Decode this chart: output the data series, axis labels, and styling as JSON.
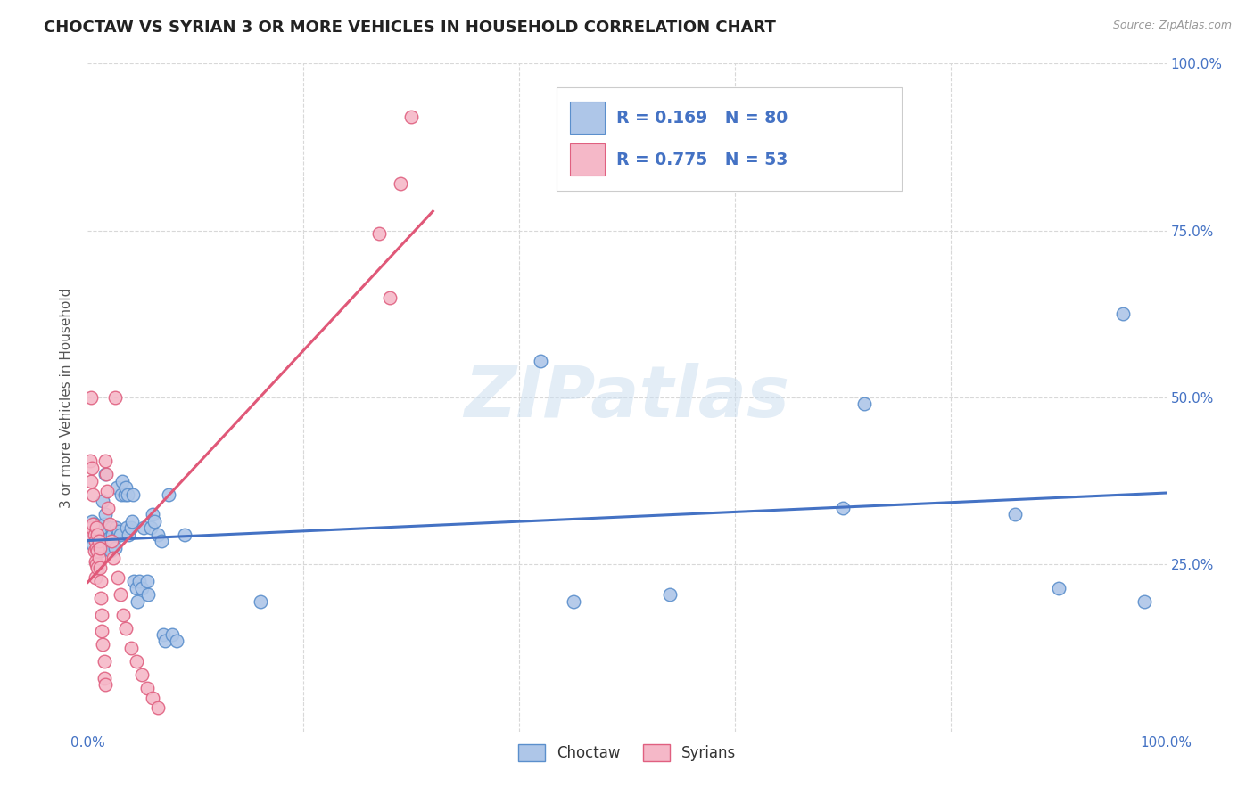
{
  "title": "CHOCTAW VS SYRIAN 3 OR MORE VEHICLES IN HOUSEHOLD CORRELATION CHART",
  "source": "Source: ZipAtlas.com",
  "ylabel": "3 or more Vehicles in Household",
  "xlim": [
    0,
    1.0
  ],
  "ylim": [
    0,
    1.0
  ],
  "ytick_positions": [
    0.25,
    0.5,
    0.75,
    1.0
  ],
  "ytick_labels": [
    "25.0%",
    "50.0%",
    "75.0%",
    "100.0%"
  ],
  "background_color": "#ffffff",
  "grid_color": "#d8d8d8",
  "choctaw_color": "#aec6e8",
  "choctaw_edge_color": "#5b8fcc",
  "choctaw_line_color": "#4472c4",
  "syrian_color": "#f5b8c8",
  "syrian_edge_color": "#e06080",
  "syrian_line_color": "#e05878",
  "choctaw_R": 0.169,
  "choctaw_N": 80,
  "syrian_R": 0.775,
  "syrian_N": 53,
  "legend_label_choctaw": "Choctaw",
  "legend_label_syrian": "Syrians",
  "watermark": "ZIPatlas",
  "title_fontsize": 13,
  "axis_label_fontsize": 11,
  "tick_fontsize": 11,
  "choctaw_points": [
    [
      0.003,
      0.305
    ],
    [
      0.004,
      0.295
    ],
    [
      0.004,
      0.315
    ],
    [
      0.005,
      0.28
    ],
    [
      0.005,
      0.3
    ],
    [
      0.006,
      0.29
    ],
    [
      0.006,
      0.31
    ],
    [
      0.007,
      0.295
    ],
    [
      0.007,
      0.285
    ],
    [
      0.008,
      0.3
    ],
    [
      0.008,
      0.27
    ],
    [
      0.009,
      0.305
    ],
    [
      0.009,
      0.28
    ],
    [
      0.01,
      0.295
    ],
    [
      0.01,
      0.285
    ],
    [
      0.011,
      0.3
    ],
    [
      0.011,
      0.275
    ],
    [
      0.012,
      0.29
    ],
    [
      0.012,
      0.27
    ],
    [
      0.013,
      0.3
    ],
    [
      0.013,
      0.285
    ],
    [
      0.014,
      0.345
    ],
    [
      0.014,
      0.295
    ],
    [
      0.015,
      0.31
    ],
    [
      0.015,
      0.28
    ],
    [
      0.016,
      0.385
    ],
    [
      0.016,
      0.325
    ],
    [
      0.017,
      0.295
    ],
    [
      0.018,
      0.305
    ],
    [
      0.019,
      0.28
    ],
    [
      0.02,
      0.29
    ],
    [
      0.021,
      0.27
    ],
    [
      0.022,
      0.305
    ],
    [
      0.023,
      0.295
    ],
    [
      0.024,
      0.285
    ],
    [
      0.025,
      0.275
    ],
    [
      0.026,
      0.305
    ],
    [
      0.027,
      0.365
    ],
    [
      0.028,
      0.295
    ],
    [
      0.029,
      0.3
    ],
    [
      0.03,
      0.295
    ],
    [
      0.031,
      0.355
    ],
    [
      0.032,
      0.375
    ],
    [
      0.034,
      0.355
    ],
    [
      0.035,
      0.365
    ],
    [
      0.036,
      0.305
    ],
    [
      0.037,
      0.355
    ],
    [
      0.038,
      0.295
    ],
    [
      0.04,
      0.305
    ],
    [
      0.041,
      0.315
    ],
    [
      0.042,
      0.355
    ],
    [
      0.043,
      0.225
    ],
    [
      0.045,
      0.215
    ],
    [
      0.046,
      0.195
    ],
    [
      0.048,
      0.225
    ],
    [
      0.05,
      0.215
    ],
    [
      0.052,
      0.305
    ],
    [
      0.055,
      0.225
    ],
    [
      0.056,
      0.205
    ],
    [
      0.058,
      0.305
    ],
    [
      0.06,
      0.325
    ],
    [
      0.062,
      0.315
    ],
    [
      0.065,
      0.295
    ],
    [
      0.068,
      0.285
    ],
    [
      0.07,
      0.145
    ],
    [
      0.072,
      0.135
    ],
    [
      0.075,
      0.355
    ],
    [
      0.078,
      0.145
    ],
    [
      0.082,
      0.135
    ],
    [
      0.09,
      0.295
    ],
    [
      0.16,
      0.195
    ],
    [
      0.42,
      0.555
    ],
    [
      0.45,
      0.195
    ],
    [
      0.54,
      0.205
    ],
    [
      0.7,
      0.335
    ],
    [
      0.72,
      0.49
    ],
    [
      0.86,
      0.325
    ],
    [
      0.9,
      0.215
    ],
    [
      0.96,
      0.625
    ],
    [
      0.98,
      0.195
    ]
  ],
  "syrian_points": [
    [
      0.002,
      0.405
    ],
    [
      0.003,
      0.375
    ],
    [
      0.003,
      0.295
    ],
    [
      0.004,
      0.395
    ],
    [
      0.004,
      0.305
    ],
    [
      0.005,
      0.31
    ],
    [
      0.005,
      0.355
    ],
    [
      0.006,
      0.27
    ],
    [
      0.006,
      0.295
    ],
    [
      0.007,
      0.285
    ],
    [
      0.007,
      0.255
    ],
    [
      0.007,
      0.23
    ],
    [
      0.008,
      0.305
    ],
    [
      0.008,
      0.275
    ],
    [
      0.008,
      0.25
    ],
    [
      0.009,
      0.295
    ],
    [
      0.009,
      0.27
    ],
    [
      0.009,
      0.245
    ],
    [
      0.01,
      0.285
    ],
    [
      0.01,
      0.26
    ],
    [
      0.011,
      0.275
    ],
    [
      0.011,
      0.245
    ],
    [
      0.012,
      0.225
    ],
    [
      0.012,
      0.2
    ],
    [
      0.013,
      0.175
    ],
    [
      0.013,
      0.15
    ],
    [
      0.014,
      0.13
    ],
    [
      0.015,
      0.08
    ],
    [
      0.015,
      0.105
    ],
    [
      0.016,
      0.07
    ],
    [
      0.003,
      0.5
    ],
    [
      0.016,
      0.405
    ],
    [
      0.017,
      0.385
    ],
    [
      0.018,
      0.36
    ],
    [
      0.019,
      0.335
    ],
    [
      0.02,
      0.31
    ],
    [
      0.022,
      0.285
    ],
    [
      0.024,
      0.26
    ],
    [
      0.025,
      0.5
    ],
    [
      0.028,
      0.23
    ],
    [
      0.03,
      0.205
    ],
    [
      0.033,
      0.175
    ],
    [
      0.035,
      0.155
    ],
    [
      0.04,
      0.125
    ],
    [
      0.045,
      0.105
    ],
    [
      0.05,
      0.085
    ],
    [
      0.055,
      0.065
    ],
    [
      0.06,
      0.05
    ],
    [
      0.065,
      0.035
    ],
    [
      0.27,
      0.745
    ],
    [
      0.29,
      0.82
    ],
    [
      0.3,
      0.92
    ],
    [
      0.28,
      0.65
    ]
  ],
  "syrian_line_xrange": [
    0.0,
    0.32
  ],
  "choctaw_line_xrange": [
    0.0,
    1.0
  ]
}
